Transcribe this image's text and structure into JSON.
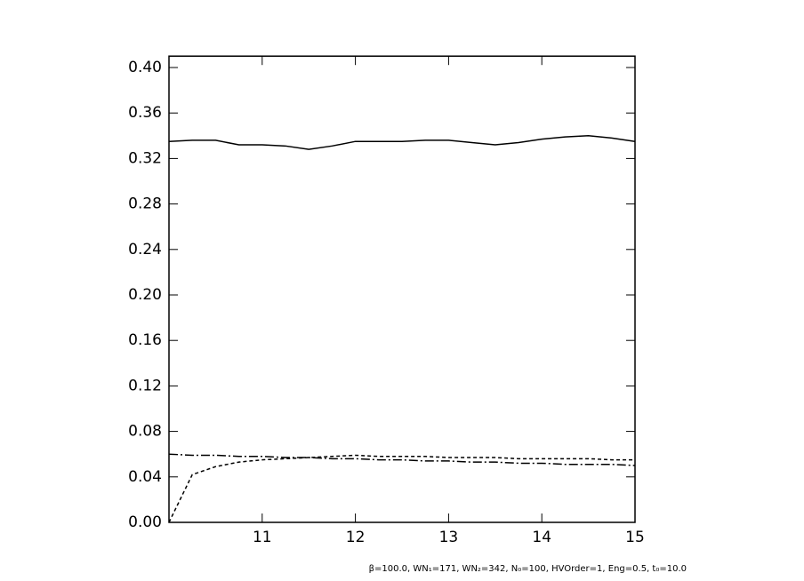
{
  "chart_data": {
    "type": "line",
    "footnote": "β=100.0, WN₁=171, WN₂=342, N₀=100, HVOrder=1, Eng=0.5, t₀=10.0",
    "x": [
      10,
      10.25,
      10.5,
      10.75,
      11,
      11.25,
      11.5,
      11.75,
      12,
      12.25,
      12.5,
      12.75,
      13,
      13.25,
      13.5,
      13.75,
      14,
      14.25,
      14.5,
      14.75,
      15
    ],
    "series": [
      {
        "color": "#000000",
        "dash": "none",
        "values": [
          0.335,
          0.336,
          0.336,
          0.332,
          0.332,
          0.331,
          0.328,
          0.331,
          0.335,
          0.335,
          0.335,
          0.336,
          0.336,
          0.334,
          0.332,
          0.334,
          0.337,
          0.339,
          0.34,
          0.338,
          0.335
        ]
      },
      {
        "color": "#000000",
        "dash": "4 3",
        "values": [
          0.0,
          0.042,
          0.049,
          0.053,
          0.055,
          0.056,
          0.057,
          0.058,
          0.059,
          0.058,
          0.058,
          0.058,
          0.057,
          0.057,
          0.057,
          0.056,
          0.056,
          0.056,
          0.056,
          0.055,
          0.055
        ]
      },
      {
        "color": "#000000",
        "dash": "10 3 2 3",
        "values": [
          0.06,
          0.059,
          0.059,
          0.058,
          0.058,
          0.057,
          0.057,
          0.056,
          0.056,
          0.055,
          0.055,
          0.054,
          0.054,
          0.053,
          0.053,
          0.052,
          0.052,
          0.051,
          0.051,
          0.051,
          0.05
        ]
      }
    ],
    "xlim": [
      10,
      15
    ],
    "xticks": [
      11,
      12,
      13,
      14,
      15
    ],
    "ylim": [
      0,
      0.41
    ],
    "yticks": [
      {
        "value": 0,
        "label": "0.00"
      },
      {
        "value": 0.04,
        "label": "0.04"
      },
      {
        "value": 0.08,
        "label": "0.08"
      },
      {
        "value": 0.12,
        "label": "0.12"
      },
      {
        "value": 0.16,
        "label": "0.16"
      },
      {
        "value": 0.2,
        "label": "0.20"
      },
      {
        "value": 0.24,
        "label": "0.24"
      },
      {
        "value": 0.28,
        "label": "0.28"
      },
      {
        "value": 0.32,
        "label": "0.32"
      },
      {
        "value": 0.36,
        "label": "0.36"
      },
      {
        "value": 0.4,
        "label": "0.40"
      }
    ]
  }
}
